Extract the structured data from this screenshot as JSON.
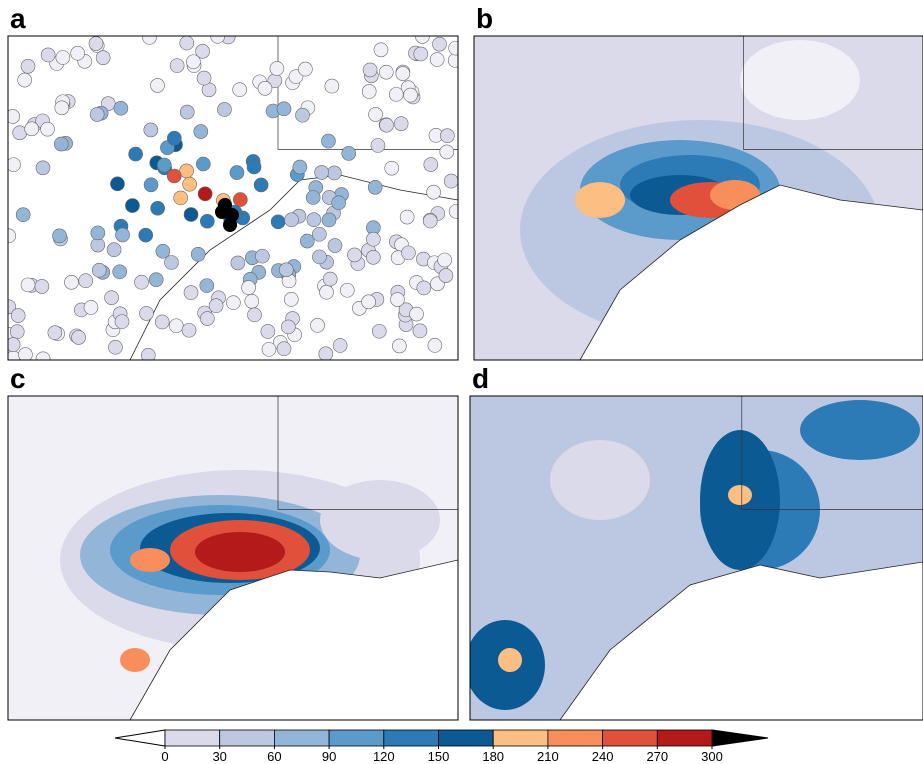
{
  "panels": [
    {
      "label": "a"
    },
    {
      "label": "b"
    },
    {
      "label": "c"
    },
    {
      "label": "d"
    }
  ],
  "colorbar": {
    "ticks": [
      0,
      30,
      60,
      90,
      120,
      150,
      180,
      210,
      240,
      270,
      300
    ],
    "colors": [
      "#f2f0f7",
      "#dadaeb",
      "#bcc8e2",
      "#93b5d8",
      "#5a9bcb",
      "#2c7bb6",
      "#0b5a94",
      "#fdbf81",
      "#f78e5c",
      "#e0503a",
      "#b51a1a"
    ],
    "under_color": "#ffffff",
    "over_color": "#000000"
  }
}
